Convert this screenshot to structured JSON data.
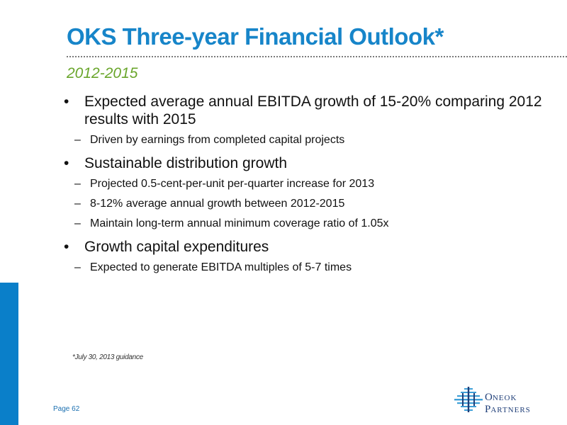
{
  "slide": {
    "title": "OKS Three-year Financial Outlook*",
    "subtitle": "2012-2015",
    "bullets": [
      {
        "text": "Expected average annual EBITDA growth of 15-20% comparing 2012 results with 2015",
        "subs": [
          "Driven by earnings from completed capital projects"
        ]
      },
      {
        "text": "Sustainable distribution growth",
        "subs": [
          "Projected 0.5-cent-per-unit per-quarter increase for 2013",
          "8-12% average annual growth between 2012-2015",
          "Maintain long-term annual minimum coverage ratio of 1.05x"
        ]
      },
      {
        "text": "Growth capital expenditures",
        "subs": [
          "Expected to generate EBITDA multiples of 5-7 times"
        ]
      }
    ],
    "bullet_glyph": "•",
    "sub_glyph": "–",
    "footnote": "*July 30, 2013 guidance",
    "page_label": "Page 62"
  },
  "logo": {
    "icon": "oneok-partners-logo-icon",
    "line1_initial": "O",
    "line1_rest": "NEOK",
    "line2_initial": "P",
    "line2_rest": "ARTNERS"
  },
  "colors": {
    "title": "#1785c9",
    "subtitle": "#6aa62c",
    "accent_bar": "#0a7fc9",
    "logo": "#1f3e78",
    "logo_icon": "#3fa0d8"
  }
}
